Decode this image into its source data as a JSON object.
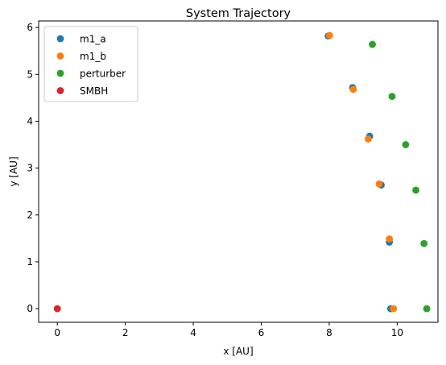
{
  "chart_data": {
    "type": "scatter",
    "title": "System Trajectory",
    "xlabel": "x [AU]",
    "ylabel": "y [AU]",
    "xlim": [
      -0.55,
      11.2
    ],
    "ylim": [
      -0.29,
      6.14
    ],
    "xticks": [
      0,
      2,
      4,
      6,
      8,
      10
    ],
    "yticks": [
      0,
      1,
      2,
      3,
      4,
      5,
      6
    ],
    "grid": false,
    "legend_position": "top-left",
    "series": [
      {
        "name": "m1_a",
        "color": "#1f77b4",
        "points": [
          [
            9.81,
            0.0
          ],
          [
            9.77,
            1.42
          ],
          [
            9.53,
            2.64
          ],
          [
            9.19,
            3.68
          ],
          [
            8.69,
            4.72
          ],
          [
            7.97,
            5.82
          ]
        ]
      },
      {
        "name": "m1_b",
        "color": "#ff7f0e",
        "points": [
          [
            9.89,
            0.0
          ],
          [
            9.77,
            1.49
          ],
          [
            9.47,
            2.66
          ],
          [
            9.15,
            3.62
          ],
          [
            8.71,
            4.68
          ],
          [
            8.01,
            5.83
          ]
        ]
      },
      {
        "name": "perturber",
        "color": "#2ca02c",
        "points": [
          [
            10.87,
            0.0
          ],
          [
            10.79,
            1.39
          ],
          [
            10.55,
            2.53
          ],
          [
            10.25,
            3.5
          ],
          [
            9.85,
            4.53
          ],
          [
            9.27,
            5.64
          ]
        ]
      },
      {
        "name": "SMBH",
        "color": "#d62728",
        "points": [
          [
            0.0,
            0.0
          ]
        ]
      }
    ]
  }
}
